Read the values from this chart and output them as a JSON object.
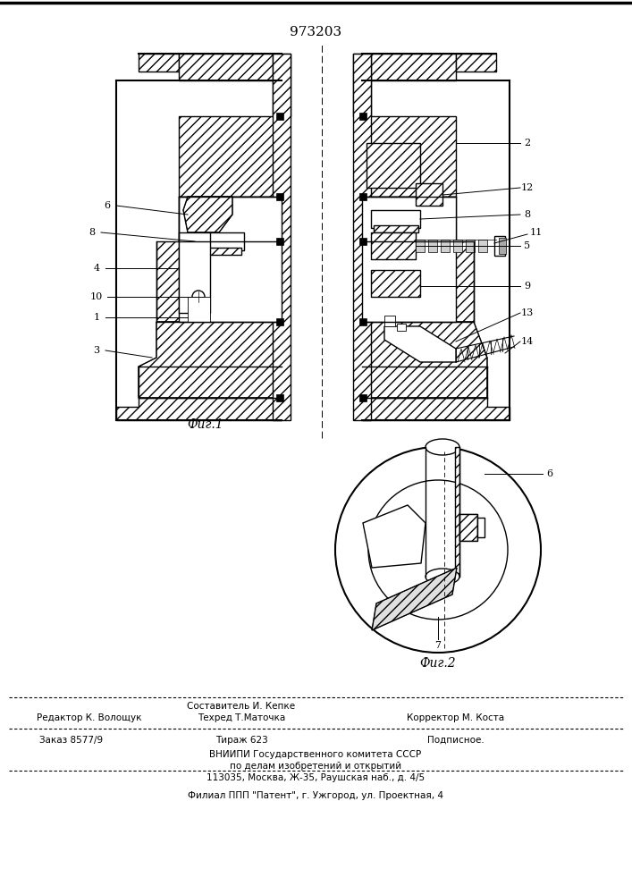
{
  "patent_number": "973203",
  "fig1_label": "Фиг.1",
  "fig2_label": "Фиг.2",
  "bg_color": "#ffffff",
  "line_color": "#000000",
  "footer": {
    "line1_center_top": "Составитель И. Кепке",
    "line1_left": "Редактор К. Волощук",
    "line1_center_bot": "Техред Т.Маточка",
    "line1_right": "Корректор М. Коста",
    "line2_left": "Заказ 8577/9",
    "line2_center": "Тираж 623",
    "line2_right": "Подписное.",
    "line3": "ВНИИПИ Государственного комитета СССР",
    "line4": "по делам изобретений и открытий",
    "line5": "113035, Москва, Ж-35, Раушская наб., д. 4/5",
    "line6": "Филиал ППП \"Патент\", г. Ужгород, ул. Проектная, 4"
  }
}
